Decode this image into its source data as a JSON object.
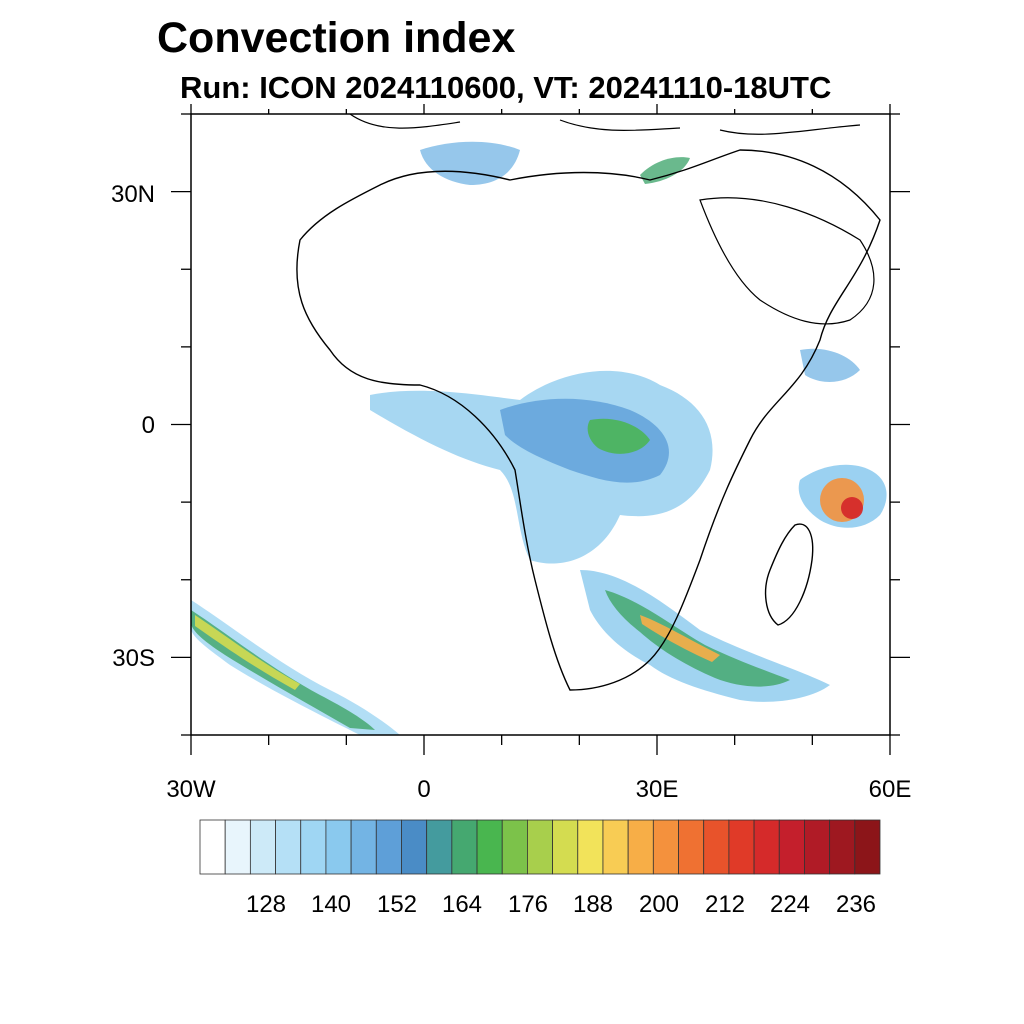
{
  "header": {
    "title": "Convection index",
    "subtitle": "Run: ICON 2024110600,  VT: 20241110-18UTC"
  },
  "map": {
    "extent": {
      "lon_min": -30,
      "lon_max": 60,
      "lat_min": -40,
      "lat_max": 40
    },
    "lat_ticks": [
      {
        "lat": 30,
        "label": "30N"
      },
      {
        "lat": 0,
        "label": "0"
      },
      {
        "lat": -30,
        "label": "30S"
      }
    ],
    "lon_ticks": [
      {
        "lon": -30,
        "label": "30W"
      },
      {
        "lon": 0,
        "label": "0"
      },
      {
        "lon": 30,
        "label": "30E"
      },
      {
        "lon": 60,
        "label": "60E"
      }
    ]
  },
  "colorbar": {
    "colors": [
      "#ffffff",
      "#e8f5fc",
      "#cdeaf8",
      "#b5e0f6",
      "#9fd6f3",
      "#8ac9ee",
      "#73b4e4",
      "#5e9fd8",
      "#4a8cc6",
      "#449b9e",
      "#45a870",
      "#49b64f",
      "#7cc24a",
      "#a8cf4c",
      "#d4dc50",
      "#f2e35a",
      "#f8cc54",
      "#f7ae47",
      "#f4913d",
      "#ef7132",
      "#e8532b",
      "#e03a28",
      "#d52a2a",
      "#c41f2c",
      "#b01b26",
      "#9e1820",
      "#8c1519"
    ],
    "labels": [
      "128",
      "140",
      "152",
      "164",
      "176",
      "188",
      "200",
      "212",
      "224",
      "236"
    ]
  }
}
